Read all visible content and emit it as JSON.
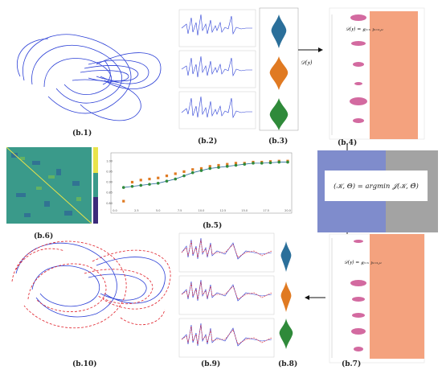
{
  "labels": {
    "b1": "(b.1)",
    "b2": "(b.2)",
    "b3": "(b.3)",
    "b4": "(b.4)",
    "b5": "(b.5)",
    "b6": "(b.6)",
    "b7": "(b.7)",
    "b8": "(b.8)",
    "b9": "(b.9)",
    "b10": "(b.10)"
  },
  "equations": {
    "D_y": "𝒟(𝐲)",
    "D_y_top": "𝒟(𝐲) = 𝒈ⱼ₌ₓ 𝔷ₓ₌ₓ,ᵤ",
    "D_y_bottom": "𝒟(𝐲) = 𝒈ⱼ₌ₓ 𝔷ₓ₌ₓ,ᵤ",
    "center_eq": "(𝒦, Θ) = argmin 𝒥(𝒦, Θ̂)"
  },
  "colors": {
    "blue": "#2b3fd6",
    "red": "#e0202a",
    "orange": "#e07a22",
    "green": "#2f8a3a",
    "teal": "#2b6f9a",
    "pink": "#d36aa0",
    "salmon": "#f4a27e",
    "slate": "#7f8ccc",
    "grey": "#a3a3a3",
    "heat": "#3a9a8a"
  },
  "chart_data": {
    "type": "scatter",
    "title": "",
    "xlabel": "",
    "ylabel": "",
    "xlim": [
      0,
      20
    ],
    "ylim": [
      0.78,
      1.02
    ],
    "x_ticks": [
      "0.0",
      "2.5",
      "5.0",
      "7.5",
      "10.0",
      "12.5",
      "15.0",
      "17.5",
      "20.0"
    ],
    "y_ticks": [
      "0.80",
      "0.85",
      "0.90",
      "0.95",
      "1.00"
    ],
    "series": [
      {
        "x": [
          1,
          2,
          3,
          4,
          5,
          6,
          7,
          8,
          9,
          10,
          11,
          12,
          13,
          14,
          15,
          16,
          17,
          18,
          19,
          20
        ],
        "values": [
          0.875,
          0.88,
          0.885,
          0.89,
          0.895,
          0.905,
          0.915,
          0.93,
          0.945,
          0.955,
          0.965,
          0.97,
          0.975,
          0.98,
          0.985,
          0.99,
          0.99,
          0.992,
          0.995,
          0.995
        ]
      },
      {
        "x": [
          1,
          2,
          3,
          4,
          5,
          6,
          7,
          8,
          9,
          10,
          11,
          12,
          13,
          14,
          15,
          16,
          17,
          18,
          19,
          20
        ],
        "values": [
          0.81,
          0.9,
          0.91,
          0.915,
          0.92,
          0.93,
          0.94,
          0.95,
          0.96,
          0.965,
          0.975,
          0.98,
          0.985,
          0.99,
          0.99,
          0.995,
          0.995,
          0.998,
          1.0,
          1.0
        ]
      }
    ]
  }
}
